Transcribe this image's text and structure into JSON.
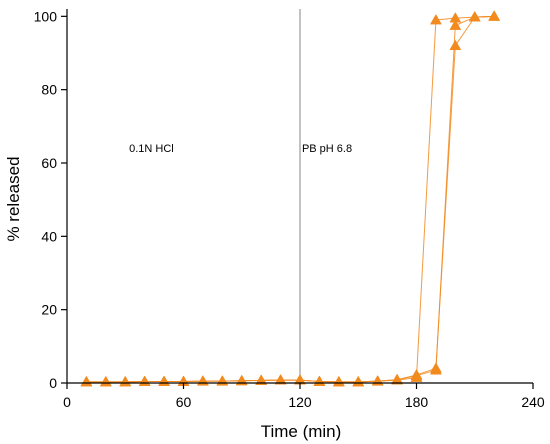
{
  "chart_data": {
    "type": "line",
    "title": "",
    "xlabel": "Time (min)",
    "ylabel": "% released",
    "xlim": [
      0,
      240
    ],
    "ylim": [
      0,
      102
    ],
    "x_ticks": [
      0,
      60,
      120,
      180,
      240
    ],
    "y_ticks": [
      0,
      20,
      40,
      60,
      80,
      100
    ],
    "grid": false,
    "legend": "none",
    "series_color": "#f28a1e",
    "marker": "triangle",
    "divider_x": 120,
    "divider_color": "#9a9a9a",
    "annotations": [
      {
        "text": "0.1N HCl",
        "x": 32,
        "y": 63
      },
      {
        "text": "PB pH 6.8",
        "x": 121,
        "y": 63
      }
    ],
    "series": [
      {
        "x": [
          10,
          20,
          30,
          40,
          50,
          60,
          70,
          80,
          90,
          100,
          110,
          120,
          130,
          140,
          150,
          160,
          170,
          180,
          190,
          200,
          210,
          220
        ],
        "y": [
          0.3,
          0.3,
          0.3,
          0.4,
          0.4,
          0.4,
          0.5,
          0.5,
          0.6,
          0.7,
          0.8,
          0.8,
          0.4,
          0.3,
          0.3,
          0.5,
          0.8,
          1.5,
          99,
          99.5,
          99.8,
          100
        ]
      },
      {
        "x": [
          10,
          20,
          30,
          40,
          50,
          60,
          70,
          80,
          90,
          100,
          110,
          120,
          130,
          140,
          150,
          160,
          170,
          180,
          190,
          200,
          210,
          220
        ],
        "y": [
          0.3,
          0.3,
          0.3,
          0.4,
          0.4,
          0.4,
          0.5,
          0.5,
          0.6,
          0.7,
          0.8,
          0.8,
          0.4,
          0.3,
          0.3,
          0.5,
          0.9,
          2.0,
          3.5,
          97.5,
          99.8,
          100
        ]
      },
      {
        "x": [
          10,
          20,
          30,
          40,
          50,
          60,
          70,
          80,
          90,
          100,
          110,
          120,
          130,
          140,
          150,
          160,
          170,
          180,
          190,
          200,
          210,
          220
        ],
        "y": [
          0.3,
          0.3,
          0.3,
          0.4,
          0.4,
          0.4,
          0.5,
          0.5,
          0.6,
          0.7,
          0.8,
          0.8,
          0.4,
          0.3,
          0.3,
          0.5,
          0.9,
          2.2,
          4.0,
          92,
          99.8,
          100
        ]
      }
    ]
  }
}
